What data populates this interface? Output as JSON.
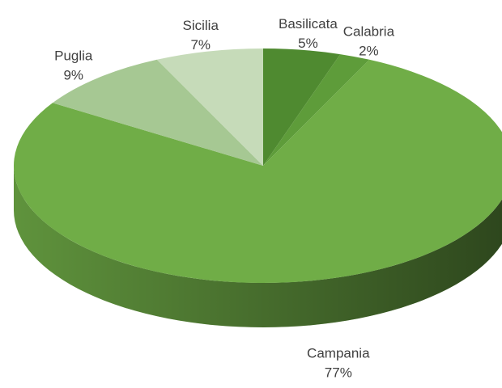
{
  "chart_data": {
    "type": "pie",
    "categories": [
      "Basilicata",
      "Calabria",
      "Campania",
      "Puglia",
      "Sicilia"
    ],
    "values": [
      5,
      2,
      77,
      9,
      7
    ],
    "value_labels": [
      "5%",
      "2%",
      "77%",
      "9%",
      "7%"
    ],
    "colors": [
      "#4f8a30",
      "#5e9c3a",
      "#70ad47",
      "#a6c893",
      "#c6dbb9"
    ]
  }
}
